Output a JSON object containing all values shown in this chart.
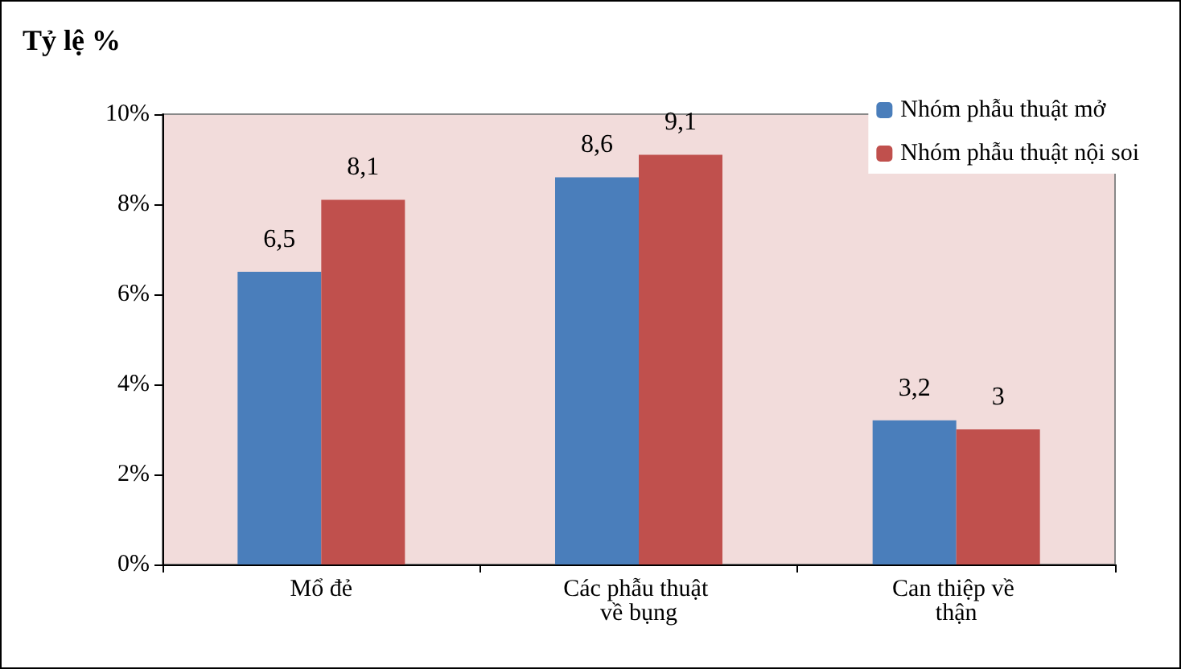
{
  "chart_data": {
    "type": "bar",
    "ylabel": "Tỷ lệ %",
    "categories": [
      "Mổ đẻ",
      "Các phẫu thuật về bụng",
      "Can thiệp về thận"
    ],
    "series": [
      {
        "name": "Nhóm phẫu thuật mở",
        "color": "#4a7ebb",
        "values": [
          6.5,
          8.6,
          3.2
        ],
        "value_labels": [
          "6,5",
          "8,6",
          "3,2"
        ]
      },
      {
        "name": "Nhóm phẫu thuật nội soi",
        "color": "#c0504d",
        "values": [
          8.1,
          9.1,
          3
        ],
        "value_labels": [
          "8,1",
          "9,1",
          "3"
        ]
      }
    ],
    "ylim": [
      0,
      10
    ],
    "yticks": [
      {
        "value": 0,
        "label": "0%"
      },
      {
        "value": 2,
        "label": "2%"
      },
      {
        "value": 4,
        "label": "4%"
      },
      {
        "value": 6,
        "label": "6%"
      },
      {
        "value": 8,
        "label": "8%"
      },
      {
        "value": 10,
        "label": "10%"
      }
    ],
    "grid": false,
    "legend": "top right"
  }
}
